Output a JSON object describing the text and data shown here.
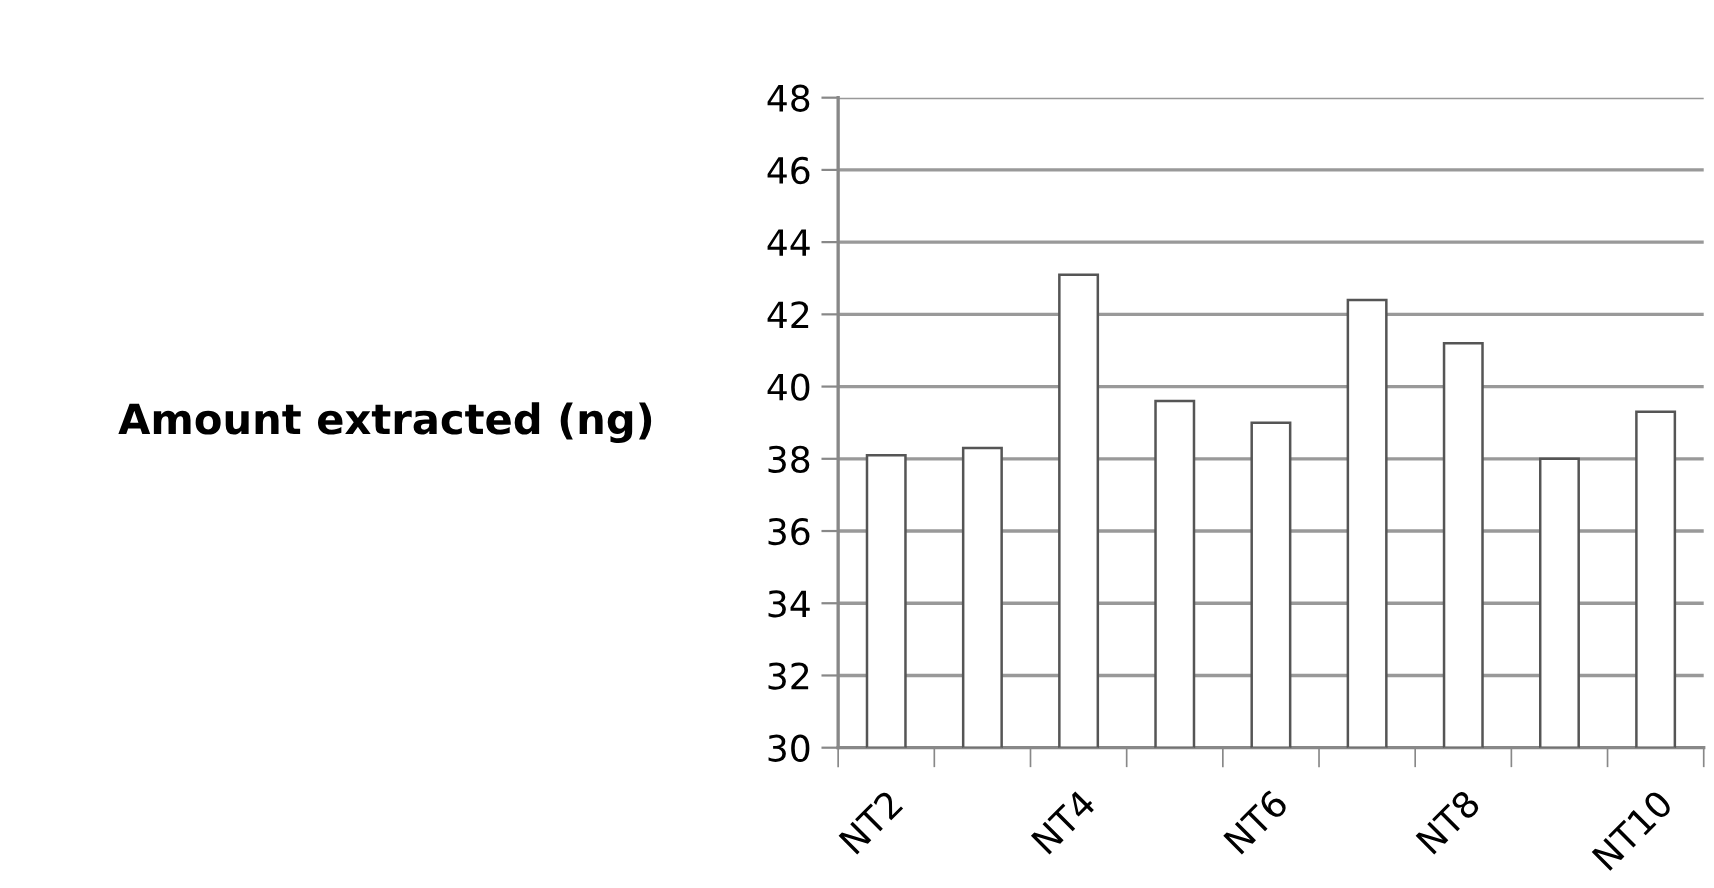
{
  "chart_data": {
    "type": "bar",
    "ylabel": "Amount extracted (ng)",
    "categories": [
      "NT2",
      null,
      "NT4",
      null,
      "NT6",
      null,
      "NT8",
      null,
      "NT10"
    ],
    "values": [
      38.1,
      38.3,
      43.1,
      39.6,
      39.0,
      42.4,
      41.2,
      38.0,
      39.3
    ],
    "color": "#ffffff",
    "ylim": [
      30,
      48
    ],
    "yticks": [
      30,
      32,
      34,
      36,
      38,
      40,
      42,
      44,
      46,
      48
    ],
    "grid": "y"
  }
}
